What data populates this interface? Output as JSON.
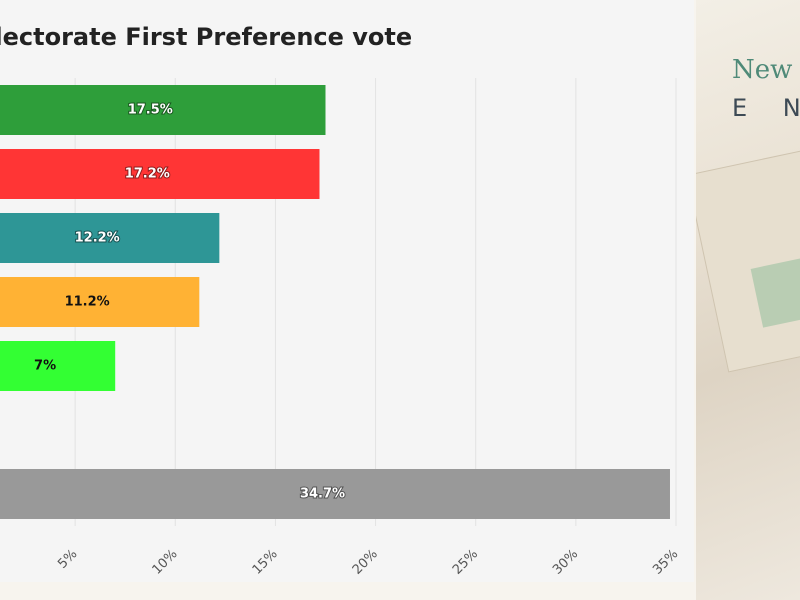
{
  "chart_data": {
    "type": "bar",
    "orientation": "horizontal",
    "title": "Electorate First Preference vote",
    "categories": [
      null,
      null,
      null,
      null,
      null,
      null,
      null
    ],
    "series": [
      {
        "name": null,
        "colors": [
          "#2e9e3a",
          "#ff3535",
          "#2e9696",
          "#ffb234",
          "#33ff33",
          null,
          "#999999"
        ],
        "values": [
          17.5,
          17.2,
          12.2,
          11.2,
          7,
          null,
          34.7
        ],
        "value_labels": [
          "17.5%",
          "17.2%",
          "12.2%",
          "11.2%",
          "7%",
          null,
          "34.7%"
        ]
      }
    ],
    "xlim": [
      0,
      35
    ],
    "xticks": [
      {
        "value": 5,
        "label": "5%"
      },
      {
        "value": 10,
        "label": "10%"
      },
      {
        "value": 15,
        "label": "15%"
      },
      {
        "value": 20,
        "label": "20%"
      },
      {
        "value": 25,
        "label": "25%"
      },
      {
        "value": 30,
        "label": "30%"
      },
      {
        "value": 35,
        "label": "35%"
      }
    ],
    "grid": true
  },
  "side": {
    "brand": "New E",
    "subtitle": "E N"
  }
}
